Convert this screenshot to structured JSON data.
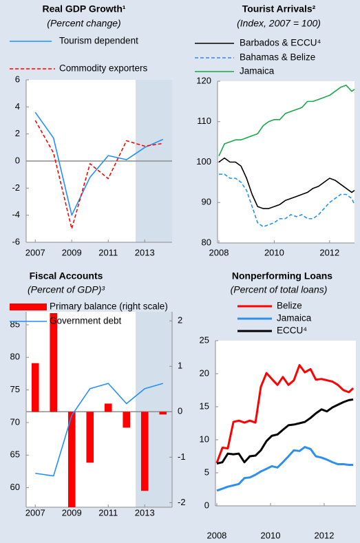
{
  "chart_data": [
    {
      "type": "line",
      "title": "Real GDP Growth¹",
      "subtitle": "(Percent change)",
      "x": [
        2007,
        2008,
        2009,
        2010,
        2011,
        2012,
        2013,
        2014
      ],
      "xlim": [
        2006.5,
        2014.5
      ],
      "xticks": [
        2007,
        2009,
        2011,
        2013
      ],
      "ylim": [
        -6,
        6
      ],
      "yticks": [
        -6,
        -4,
        -2,
        0,
        2,
        4,
        6
      ],
      "shade": [
        2012.5,
        2014.5
      ],
      "zero_line": true,
      "series": [
        {
          "name": "Tourism dependent",
          "color": "#1f8fff",
          "line_style": "solid",
          "values": [
            3.6,
            1.7,
            -4.0,
            -1.2,
            0.4,
            0.1,
            1.0,
            1.6
          ]
        },
        {
          "name": "Commodity exporters",
          "color": "#ff0000",
          "line_style": "dashed",
          "values": [
            3.0,
            0.6,
            -5.0,
            -0.2,
            -1.3,
            1.5,
            1.1,
            1.3
          ]
        }
      ]
    },
    {
      "type": "line",
      "title": "Tourist Arrivals²",
      "subtitle": "(Index, 2007 = 100)",
      "x": [
        2008.0,
        2008.2,
        2008.4,
        2008.6,
        2008.8,
        2009.0,
        2009.2,
        2009.4,
        2009.6,
        2009.8,
        2010.0,
        2010.2,
        2010.4,
        2010.6,
        2010.8,
        2011.0,
        2011.2,
        2011.4,
        2011.6,
        2011.8,
        2012.0,
        2012.2,
        2012.4,
        2012.6,
        2012.8,
        2012.9
      ],
      "xlim": [
        2007.95,
        2012.9
      ],
      "xticks": [
        2008,
        2010,
        2012
      ],
      "ylim": [
        80,
        120
      ],
      "yticks": [
        80,
        90,
        100,
        110,
        120
      ],
      "series": [
        {
          "name": "Barbados & ECCU⁴",
          "color": "#000000",
          "line_style": "solid",
          "values": [
            100,
            101,
            100,
            100,
            99,
            96,
            92,
            89,
            88.5,
            88.5,
            89,
            89.5,
            90.5,
            91,
            91.5,
            92,
            92.5,
            93.5,
            94,
            95,
            96,
            95.5,
            94.5,
            93.5,
            92.5,
            93
          ]
        },
        {
          "name": "Bahamas & Belize",
          "color": "#1f8fff",
          "line_style": "dashed",
          "values": [
            97,
            97,
            96,
            96,
            95,
            93,
            89,
            85,
            84,
            84.5,
            85,
            86,
            86,
            87,
            86.5,
            87,
            86,
            86,
            87,
            88.5,
            90,
            91,
            92,
            92,
            91,
            89.5
          ]
        },
        {
          "name": "Jamaica",
          "color": "#1aa64a",
          "line_style": "solid",
          "values": [
            101.5,
            104.5,
            105,
            105.5,
            105.5,
            106,
            106.5,
            107,
            109,
            110,
            110.5,
            110.5,
            112,
            112.5,
            113,
            113.5,
            115,
            115,
            115.5,
            116,
            116.5,
            117.5,
            118.5,
            119,
            117.5,
            118
          ]
        }
      ]
    },
    {
      "type": "combo",
      "title": "Fiscal Accounts",
      "subtitle": "(Percent of GDP)³",
      "x": [
        2007,
        2008,
        2009,
        2010,
        2011,
        2012,
        2013,
        2014
      ],
      "xlim": [
        2006.5,
        2014.5
      ],
      "xticks": [
        2007,
        2009,
        2011,
        2013
      ],
      "ylim": [
        57,
        87
      ],
      "yticks": [
        60,
        65,
        70,
        75,
        80,
        85
      ],
      "y2lim": [
        -2.1,
        2.2
      ],
      "y2ticks": [
        -2,
        -1,
        0,
        1,
        2
      ],
      "shade": [
        2012.5,
        2014.5
      ],
      "zero_line": true,
      "series": [
        {
          "name": "Primary balance (right scale)",
          "type": "bar",
          "axis": "y2",
          "color": "#ff0000",
          "values": [
            1.07,
            2.17,
            -2.1,
            -1.12,
            0.18,
            -0.35,
            -1.74,
            -0.06
          ]
        },
        {
          "name": "Government debt",
          "type": "line",
          "color": "#1f8fff",
          "line_style": "solid",
          "values": [
            62.2,
            61.8,
            71.1,
            75.2,
            76.0,
            72.9,
            75.2,
            76.0
          ]
        }
      ]
    },
    {
      "type": "line",
      "title": "Nonperforming Loans",
      "subtitle": "(Percent of total loans)",
      "x": [
        2008.0,
        2008.21,
        2008.41,
        2008.62,
        2008.82,
        2009.03,
        2009.23,
        2009.44,
        2009.64,
        2009.85,
        2010.05,
        2010.26,
        2010.46,
        2010.67,
        2010.87,
        2011.08,
        2011.28,
        2011.49,
        2011.69,
        2011.9,
        2012.1,
        2012.31,
        2012.51,
        2012.72,
        2012.92,
        2013.08
      ],
      "xlim": [
        2007.95,
        2013.18
      ],
      "xticks": [
        2008,
        2010,
        2012
      ],
      "ylim": [
        0,
        25
      ],
      "yticks": [
        0,
        5,
        10,
        15,
        20,
        25
      ],
      "series": [
        {
          "name": "Belize",
          "color": "#ff0000",
          "line_style": "solid",
          "values": [
            6.5,
            8.8,
            8.7,
            12.7,
            12.9,
            12.6,
            12.9,
            12.6,
            18.0,
            20.1,
            19.2,
            18.3,
            19.5,
            18.3,
            19.0,
            21.3,
            20.2,
            20.7,
            19.1,
            19.2,
            19.0,
            18.8,
            18.3,
            17.5,
            17.2,
            17.8
          ]
        },
        {
          "name": "Jamaica",
          "color": "#2e8ff0",
          "line_style": "solid",
          "values": [
            2.3,
            2.6,
            2.9,
            3.1,
            3.3,
            4.2,
            4.3,
            4.7,
            5.2,
            5.6,
            6.0,
            5.8,
            6.6,
            7.5,
            8.4,
            8.3,
            8.9,
            8.6,
            7.5,
            7.3,
            7.0,
            6.6,
            6.3,
            6.3,
            6.2,
            6.2
          ]
        },
        {
          "name": "ECCU⁴",
          "color": "#000000",
          "line_style": "solid",
          "values": [
            6.4,
            6.6,
            7.9,
            7.8,
            7.9,
            6.6,
            7.5,
            7.6,
            8.4,
            9.8,
            10.6,
            10.8,
            11.5,
            12.2,
            12.3,
            12.5,
            12.7,
            13.3,
            14.0,
            14.6,
            14.3,
            14.9,
            15.3,
            15.7,
            16.0,
            16.1
          ]
        }
      ]
    }
  ]
}
